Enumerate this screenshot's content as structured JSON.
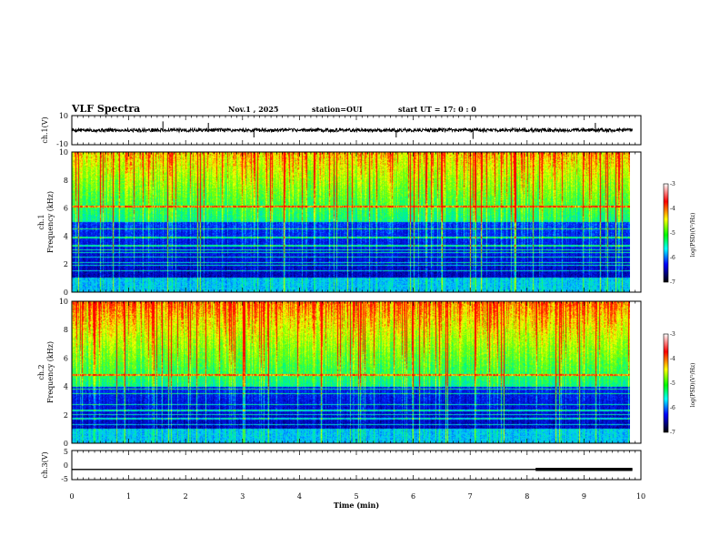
{
  "header": {
    "title": "VLF Spectra",
    "date": "Nov.1  , 2025",
    "station": "station=OUI",
    "start": "start  UT =   17: 0  : 0"
  },
  "colorbar": {
    "label": "log(PSD)(V²/Hz)",
    "ticks": [
      -3,
      -4,
      -5,
      -6,
      -7
    ],
    "colors": [
      "#ffffff",
      "#ff0000",
      "#ffff00",
      "#00ff00",
      "#00ffff",
      "#0000ff",
      "#000000"
    ]
  },
  "chart_data": [
    {
      "type": "line",
      "name": "ch1-waveform",
      "ylabel": "ch.1(V)",
      "ylim": [
        -10,
        10
      ],
      "yticks": [
        "10",
        "-10"
      ],
      "baseline": 0,
      "noise_amplitude": 1.2,
      "spikes": [
        [
          1.6,
          6
        ],
        [
          2.4,
          5
        ],
        [
          3.2,
          -5
        ],
        [
          5.7,
          -5
        ],
        [
          7.05,
          -6
        ],
        [
          9.2,
          5
        ]
      ],
      "xlim": [
        0,
        10
      ]
    },
    {
      "type": "heatmap",
      "name": "ch1-spectrogram",
      "ylabel": "ch.1\nFrequency (kHz)",
      "yticks": [
        "0",
        "2",
        "4",
        "6",
        "8",
        "10"
      ],
      "ylim": [
        0,
        10
      ],
      "xlim": [
        0,
        9.85
      ],
      "quiet_band_khz": [
        1.0,
        5.0
      ],
      "persistent_lines_khz": [
        1.5,
        1.9,
        2.1,
        2.5,
        2.8,
        3.0,
        3.3,
        3.9,
        4.5,
        6.1
      ],
      "pattern_seed": 17
    },
    {
      "type": "heatmap",
      "name": "ch2-spectrogram",
      "ylabel": "ch.2\nFrequency (kHz)",
      "yticks": [
        "0",
        "2",
        "4",
        "6",
        "8",
        "10"
      ],
      "ylim": [
        0,
        10
      ],
      "xlim": [
        0,
        9.85
      ],
      "quiet_band_khz": [
        1.0,
        4.0
      ],
      "persistent_lines_khz": [
        1.3,
        1.7,
        2.0,
        2.3,
        2.7,
        3.5,
        3.8,
        4.8
      ],
      "pattern_seed": 29
    },
    {
      "type": "line",
      "name": "ch3-level",
      "ylabel": "ch.3(V)",
      "ylim": [
        -5,
        5
      ],
      "yticks": [
        "5",
        "0",
        "-5"
      ],
      "level": -1.5,
      "thick_from_min": 8.15,
      "xlim": [
        0,
        10
      ]
    }
  ],
  "xaxis": {
    "label": "Time (min)",
    "ticks": [
      "0",
      "1",
      "2",
      "3",
      "4",
      "5",
      "6",
      "7",
      "8",
      "9",
      "10"
    ],
    "range": [
      0,
      10
    ]
  }
}
